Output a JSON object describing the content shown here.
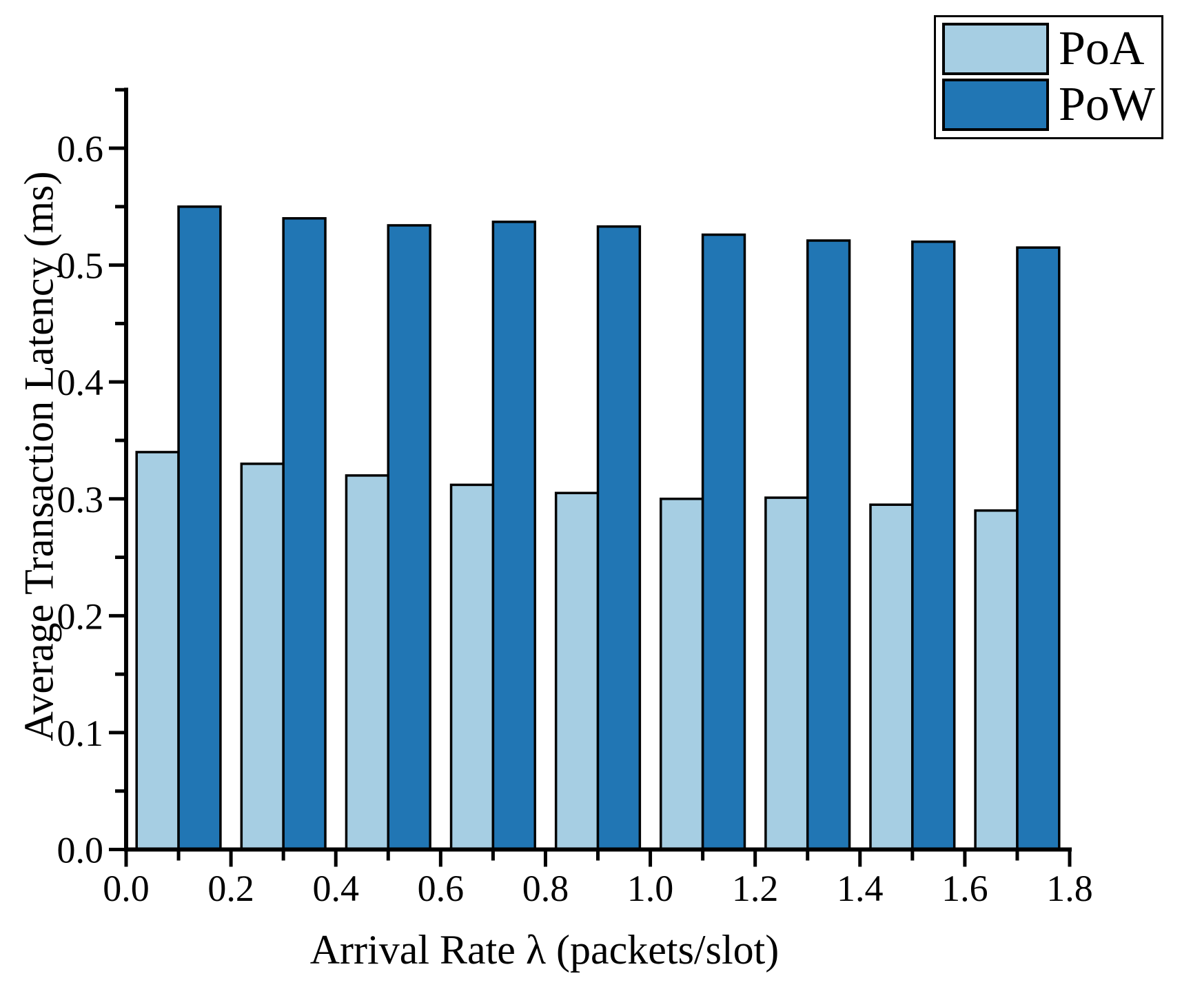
{
  "chart_data": {
    "type": "bar",
    "title": "",
    "xlabel": "Arrival Rate λ (packets/slot)",
    "ylabel": "Average Transaction Latency (ms)",
    "group_centers": [
      0.1,
      0.3,
      0.5,
      0.7,
      0.9,
      1.1,
      1.3,
      1.5,
      1.7
    ],
    "bar_width": 0.08,
    "series": [
      {
        "name": "PoA",
        "color": "#A6CEE3",
        "edge_color": "#000000",
        "values": [
          0.34,
          0.33,
          0.32,
          0.312,
          0.305,
          0.3,
          0.301,
          0.295,
          0.29
        ]
      },
      {
        "name": "PoW",
        "color": "#2176B4",
        "edge_color": "#000000",
        "values": [
          0.55,
          0.54,
          0.534,
          0.537,
          0.533,
          0.526,
          0.521,
          0.52,
          0.515
        ]
      }
    ],
    "xlim": [
      0.0,
      1.8
    ],
    "ylim": [
      0.0,
      0.65
    ],
    "x_major_ticks": [
      0.0,
      0.2,
      0.4,
      0.6,
      0.8,
      1.0,
      1.2,
      1.4,
      1.6,
      1.8
    ],
    "x_minor_ticks": [
      0.1,
      0.3,
      0.5,
      0.7,
      0.9,
      1.1,
      1.3,
      1.5,
      1.7
    ],
    "x_tick_labels": [
      "0.0",
      "0.2",
      "0.4",
      "0.6",
      "0.8",
      "1.0",
      "1.2",
      "1.4",
      "1.6",
      "1.8"
    ],
    "y_major_ticks": [
      0.0,
      0.1,
      0.2,
      0.3,
      0.4,
      0.5,
      0.6
    ],
    "y_minor_ticks": [
      0.05,
      0.15,
      0.25,
      0.35,
      0.45,
      0.55,
      0.65
    ],
    "y_tick_labels": [
      "0.0",
      "0.1",
      "0.2",
      "0.3",
      "0.4",
      "0.5",
      "0.6"
    ],
    "grid": false,
    "legend": {
      "position": "top-right",
      "items": [
        {
          "label": "PoA"
        },
        {
          "label": "PoW"
        }
      ]
    }
  }
}
